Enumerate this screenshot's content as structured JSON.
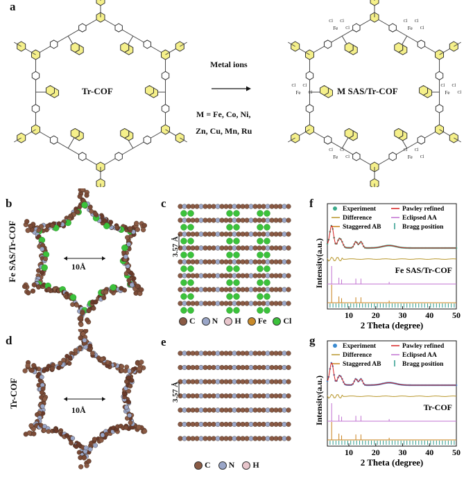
{
  "panel_a": {
    "label": "a",
    "left_title": "Tr-COF",
    "arrow_label": "Metal ions",
    "metals_line1": "M  =  Fe, Co, Ni,",
    "metals_line2": "Zn, Cu, Mn, Ru",
    "right_title": "M SAS/Tr-COF",
    "cl_label": "Cl",
    "fe_label": "Fe"
  },
  "panel_b": {
    "label": "b",
    "side_label": "Fe SAS/Tr-COF",
    "pore_label": "10Å"
  },
  "panel_c": {
    "label": "c",
    "spacing_label": "3.57 Å",
    "legend": [
      {
        "symbol": "C",
        "color": "#8a5a44"
      },
      {
        "symbol": "N",
        "color": "#9aa6c8"
      },
      {
        "symbol": "H",
        "color": "#e8c6cc"
      },
      {
        "symbol": "Fe",
        "color": "#c88a2a"
      },
      {
        "symbol": "Cl",
        "color": "#3bc23b"
      }
    ]
  },
  "panel_d": {
    "label": "d",
    "side_label": "Tr-COF",
    "pore_label": "10Å"
  },
  "panel_e": {
    "label": "e",
    "spacing_label": "3.57 Å",
    "legend": [
      {
        "symbol": "C",
        "color": "#8a5a44"
      },
      {
        "symbol": "N",
        "color": "#9aa6c8"
      },
      {
        "symbol": "H",
        "color": "#e8c6cc"
      }
    ]
  },
  "chart_data": [
    {
      "type": "line",
      "panel": "f",
      "annotation": "Fe SAS/Tr-COF",
      "xlabel": "2 Theta (degree)",
      "ylabel": "Intensity(a.u.)",
      "xlim": [
        2,
        50
      ],
      "xticks": [
        10,
        20,
        30,
        40,
        50
      ],
      "legend": [
        "Experiment",
        "Pawley refined",
        "Difference",
        "Eclipsed AA",
        "Staggered AB",
        "Bragg position"
      ],
      "colors": {
        "experiment": "#3aaa8a",
        "pawley": "#d62020",
        "difference": "#b8962a",
        "eclipsed": "#c070d0",
        "staggered": "#c8801a",
        "bragg": "#2a9a8a"
      },
      "peaks": [
        {
          "x": 3.6,
          "intensity": 1.0
        },
        {
          "x": 6.3,
          "intensity": 0.35
        },
        {
          "x": 7.3,
          "intensity": 0.25
        },
        {
          "x": 12.6,
          "intensity": 0.3
        },
        {
          "x": 14.5,
          "intensity": 0.3
        },
        {
          "x": 25.0,
          "intensity": 0.12
        }
      ]
    },
    {
      "type": "line",
      "panel": "g",
      "annotation": "Tr-COF",
      "xlabel": "2 Theta (degree)",
      "ylabel": "Intensity(a.u.)",
      "xlim": [
        2,
        50
      ],
      "xticks": [
        10,
        20,
        30,
        40,
        50
      ],
      "legend": [
        "Experiment",
        "Pawley refined",
        "Difference",
        "Eclipsed AA",
        "Staggered AB",
        "Bragg position"
      ],
      "colors": {
        "experiment": "#3a8ad0",
        "pawley": "#d62020",
        "difference": "#b8962a",
        "eclipsed": "#c070d0",
        "staggered": "#c8801a",
        "bragg": "#2a9a8a"
      },
      "peaks": [
        {
          "x": 3.6,
          "intensity": 1.0
        },
        {
          "x": 6.3,
          "intensity": 0.35
        },
        {
          "x": 7.3,
          "intensity": 0.25
        },
        {
          "x": 12.6,
          "intensity": 0.3
        },
        {
          "x": 14.5,
          "intensity": 0.3
        },
        {
          "x": 25.0,
          "intensity": 0.12
        }
      ]
    }
  ]
}
